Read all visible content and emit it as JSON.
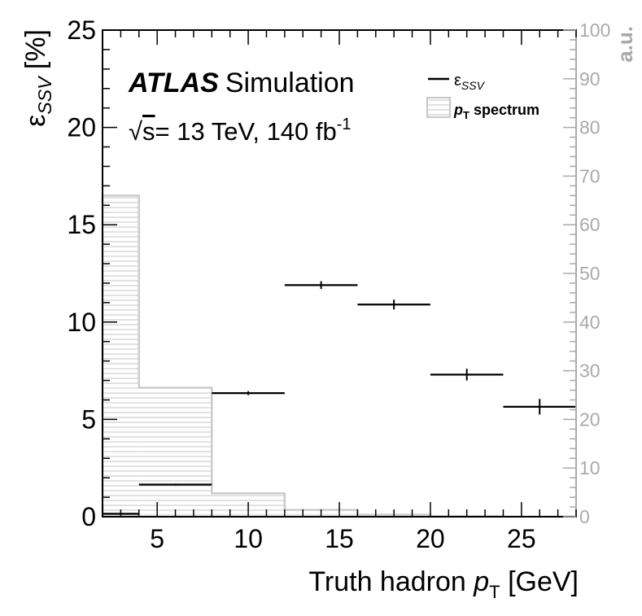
{
  "chart_data": {
    "type": "bar",
    "annotations": {
      "atlas": "ATLAS",
      "simulation": "Simulation",
      "energy_sqrt": "√",
      "energy_s": "s",
      "energy_rest": "= 13 TeV, 140 fb",
      "energy_sup": "-1"
    },
    "xlabel": {
      "main": "Truth hadron ",
      "var": "p",
      "sub": "T",
      "unit": " [GeV]"
    },
    "ylabel": {
      "sym": "ε",
      "sub": "SSV",
      "unit": " [%]"
    },
    "ylabel_right": "a.u.",
    "xlim": [
      2,
      28
    ],
    "ylim": [
      0,
      25
    ],
    "ylim_right": [
      0,
      100
    ],
    "x_ticks": [
      5,
      10,
      15,
      20,
      25
    ],
    "y_ticks": [
      0,
      5,
      10,
      15,
      20,
      25
    ],
    "y_ticks_right": [
      0,
      10,
      20,
      30,
      40,
      50,
      60,
      70,
      80,
      90,
      100
    ],
    "legend": {
      "position": "top-right",
      "entries": [
        {
          "sym": "ε",
          "sub": "SSV"
        },
        {
          "sym": "p",
          "sub": "T",
          "rest": " spectrum"
        }
      ]
    },
    "series": [
      {
        "kind": "points-with-x-errors",
        "color": "#000000",
        "bins": [
          {
            "xlo": 2,
            "xhi": 4,
            "y": 0.15,
            "yerr": 0.05
          },
          {
            "xlo": 4,
            "xhi": 8,
            "y": 1.65,
            "yerr": 0.05
          },
          {
            "xlo": 8,
            "xhi": 12,
            "y": 6.35,
            "yerr": 0.1
          },
          {
            "xlo": 12,
            "xhi": 16,
            "y": 11.9,
            "yerr": 0.2
          },
          {
            "xlo": 16,
            "xhi": 20,
            "y": 10.9,
            "yerr": 0.25
          },
          {
            "xlo": 20,
            "xhi": 24,
            "y": 7.3,
            "yerr": 0.3
          },
          {
            "xlo": 24,
            "xhi": 28,
            "y": 5.65,
            "yerr": 0.4
          }
        ]
      },
      {
        "kind": "hatched-histogram",
        "axis": "right",
        "color": "#cccccc",
        "bins": [
          {
            "xlo": 2,
            "xhi": 4,
            "y": 66
          },
          {
            "xlo": 4,
            "xhi": 8,
            "y": 26.5
          },
          {
            "xlo": 8,
            "xhi": 12,
            "y": 4.8
          },
          {
            "xlo": 12,
            "xhi": 16,
            "y": 1.4
          },
          {
            "xlo": 16,
            "xhi": 20,
            "y": 0.4
          },
          {
            "xlo": 20,
            "xhi": 24,
            "y": 0.15
          },
          {
            "xlo": 24,
            "xhi": 28,
            "y": 0.05
          }
        ]
      }
    ]
  }
}
